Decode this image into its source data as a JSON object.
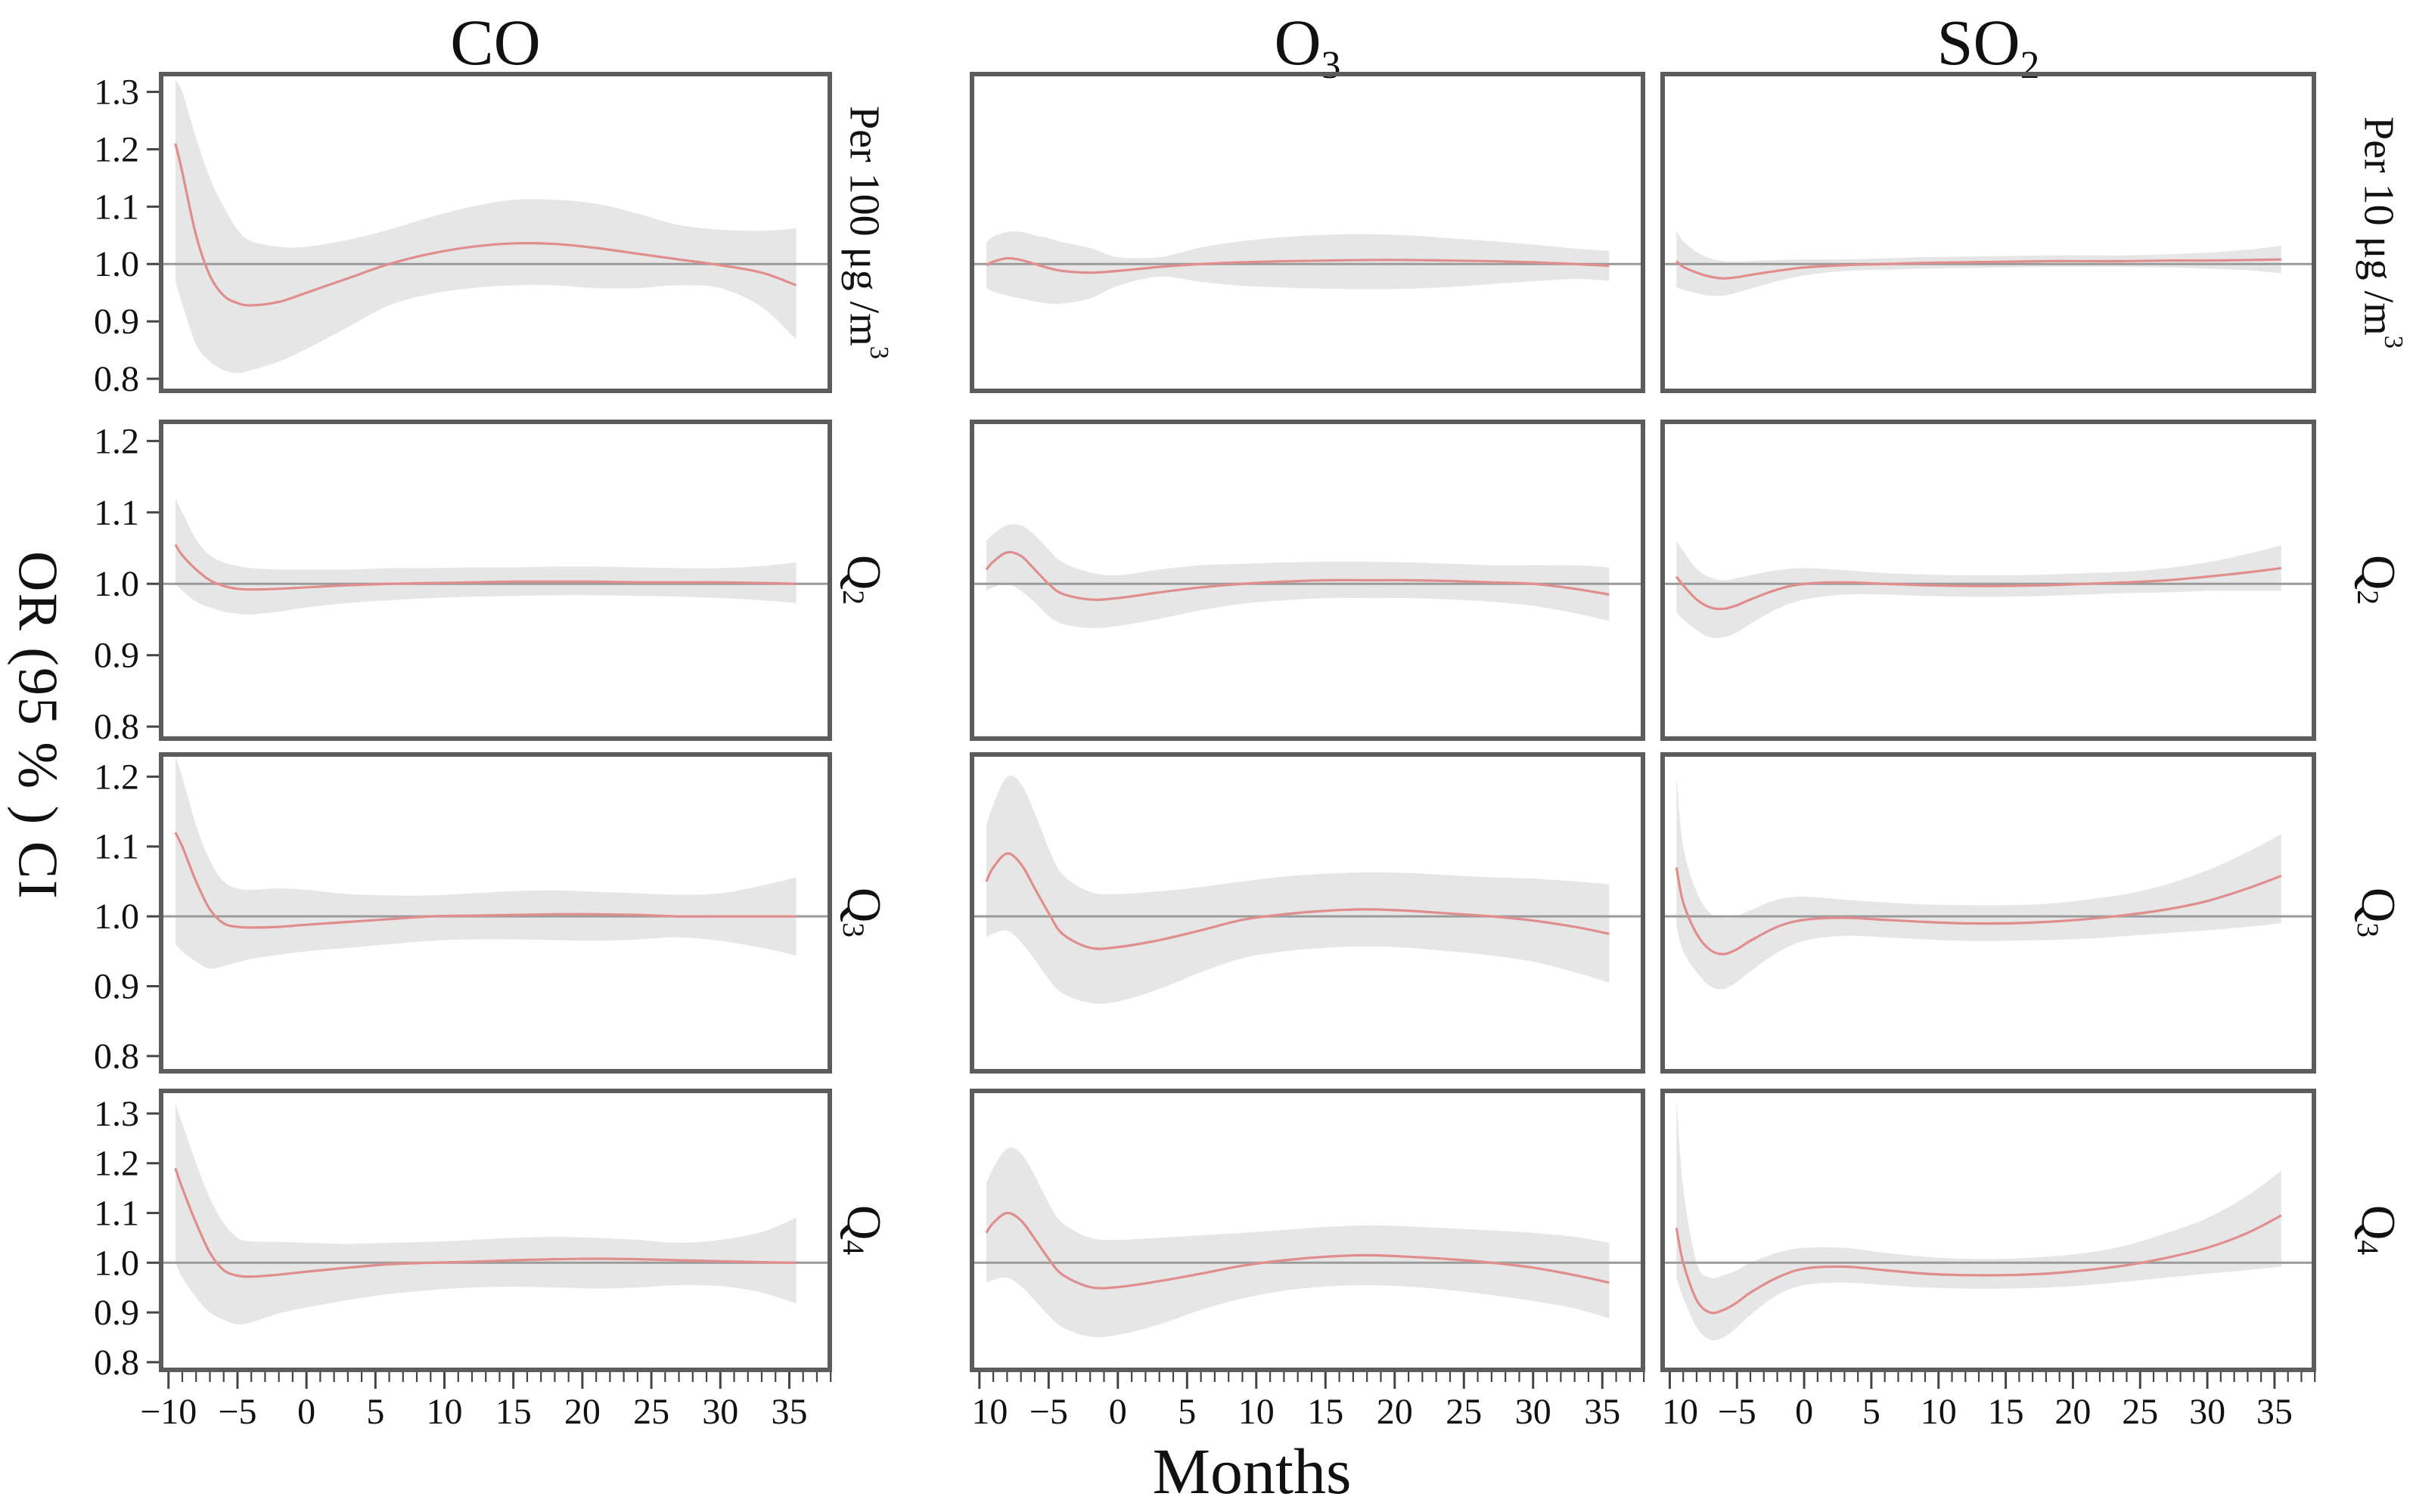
{
  "figure": {
    "columns": [
      {
        "key": "CO",
        "title": "CO",
        "title_sub": ""
      },
      {
        "key": "O3",
        "title": "O",
        "title_sub": "3"
      },
      {
        "key": "SO2",
        "title": "SO",
        "title_sub": "2"
      }
    ],
    "y_axis_label": "OR (95 % ) CI",
    "x_axis_label": "Months",
    "x_ticks": [
      -10,
      -5,
      0,
      5,
      10,
      15,
      20,
      25,
      30,
      35
    ],
    "x_domain": [
      -10.7,
      38.1
    ],
    "x_minor_from": -10,
    "x_minor_to": 38,
    "reference_line": 1.0,
    "colors": {
      "curve": "#e08d8d",
      "band": "#e3e3e3",
      "reference": "#9b9b9b",
      "frame": "#5c5c5c",
      "text": "#111111"
    },
    "rows": [
      {
        "key": "per-unit",
        "y_ticks": [
          1.3,
          1.2,
          1.1,
          1.0,
          0.9,
          0.8
        ],
        "y_domain": [
          0.775,
          1.335
        ],
        "left_label": {
          "text": "Per 100 μg /m",
          "sup": "3",
          "sub": ""
        },
        "right_label": {
          "text": "Per 10 μg /m",
          "sup": "3",
          "sub": ""
        }
      },
      {
        "key": "Q2",
        "y_ticks": [
          1.2,
          1.1,
          1.0,
          0.9,
          0.8
        ],
        "y_domain": [
          0.78,
          1.23
        ],
        "left_label": {
          "text": "Q",
          "sup": "",
          "sub": "2"
        },
        "right_label": {
          "text": "Q",
          "sup": "",
          "sub": "2"
        }
      },
      {
        "key": "Q3",
        "y_ticks": [
          1.2,
          1.1,
          1.0,
          0.9,
          0.8
        ],
        "y_domain": [
          0.775,
          1.235
        ],
        "left_label": {
          "text": "Q",
          "sup": "",
          "sub": "3"
        },
        "right_label": {
          "text": "Q",
          "sup": "",
          "sub": "3"
        }
      },
      {
        "key": "Q4",
        "y_ticks": [
          1.3,
          1.2,
          1.1,
          1.0,
          0.9,
          0.8
        ],
        "y_domain": [
          0.78,
          1.35
        ],
        "left_label": {
          "text": "Q",
          "sup": "",
          "sub": "4"
        },
        "right_label": {
          "text": "Q",
          "sup": "",
          "sub": "4"
        }
      }
    ]
  },
  "chart_data": [
    {
      "type": "line",
      "column": "CO",
      "row": "per-unit",
      "exposure_label": "Per 100 μg/m³",
      "x": [
        -9.5,
        -9,
        -8,
        -7,
        -6,
        -5,
        -4,
        -2,
        0,
        3,
        6,
        9,
        12,
        15,
        18,
        21,
        24,
        27,
        30,
        33,
        35.5
      ],
      "or": [
        1.21,
        1.16,
        1.05,
        0.98,
        0.945,
        0.932,
        0.928,
        0.934,
        0.95,
        0.975,
        1.0,
        1.018,
        1.03,
        1.036,
        1.035,
        1.028,
        1.018,
        1.008,
        0.998,
        0.985,
        0.963
      ],
      "ci_lower": [
        0.97,
        0.93,
        0.86,
        0.83,
        0.815,
        0.81,
        0.815,
        0.83,
        0.852,
        0.89,
        0.928,
        0.948,
        0.958,
        0.963,
        0.963,
        0.958,
        0.958,
        0.963,
        0.958,
        0.925,
        0.868
      ],
      "ci_upper": [
        1.32,
        1.3,
        1.22,
        1.15,
        1.1,
        1.06,
        1.04,
        1.03,
        1.03,
        1.042,
        1.06,
        1.082,
        1.1,
        1.112,
        1.112,
        1.105,
        1.088,
        1.068,
        1.06,
        1.058,
        1.062
      ]
    },
    {
      "type": "line",
      "column": "O3",
      "row": "per-unit",
      "exposure_label": "Per 100 μg/m³",
      "x": [
        -9.5,
        -9,
        -8,
        -7,
        -6,
        -5,
        -4,
        -2,
        0,
        3,
        6,
        9,
        12,
        15,
        18,
        21,
        24,
        27,
        30,
        33,
        35.5
      ],
      "or": [
        0.998,
        1.004,
        1.01,
        1.007,
        1.0,
        0.993,
        0.988,
        0.985,
        0.988,
        0.995,
        1.0,
        1.003,
        1.005,
        1.006,
        1.007,
        1.007,
        1.006,
        1.005,
        1.003,
        1.0,
        0.997
      ],
      "ci_lower": [
        0.958,
        0.952,
        0.945,
        0.94,
        0.935,
        0.931,
        0.931,
        0.94,
        0.962,
        0.978,
        0.969,
        0.962,
        0.959,
        0.957,
        0.956,
        0.957,
        0.96,
        0.965,
        0.97,
        0.974,
        0.971
      ],
      "ci_upper": [
        1.038,
        1.048,
        1.056,
        1.056,
        1.05,
        1.045,
        1.038,
        1.028,
        1.012,
        1.012,
        1.029,
        1.04,
        1.047,
        1.051,
        1.052,
        1.05,
        1.045,
        1.04,
        1.034,
        1.027,
        1.023
      ]
    },
    {
      "type": "line",
      "column": "SO2",
      "row": "per-unit",
      "exposure_label": "Per 10 μg/m³",
      "x": [
        -9.5,
        -9,
        -8,
        -7,
        -6,
        -5,
        -4,
        -2,
        0,
        3,
        6,
        9,
        12,
        15,
        18,
        21,
        24,
        27,
        30,
        33,
        35.5
      ],
      "or": [
        1.005,
        0.995,
        0.985,
        0.978,
        0.975,
        0.977,
        0.981,
        0.988,
        0.994,
        0.998,
        1.0,
        1.002,
        1.003,
        1.004,
        1.005,
        1.005,
        1.005,
        1.006,
        1.006,
        1.007,
        1.008
      ],
      "ci_lower": [
        0.96,
        0.955,
        0.949,
        0.945,
        0.945,
        0.95,
        0.957,
        0.97,
        0.98,
        0.988,
        0.99,
        0.992,
        0.993,
        0.994,
        0.995,
        0.995,
        0.995,
        0.994,
        0.992,
        0.989,
        0.984
      ],
      "ci_upper": [
        1.058,
        1.04,
        1.021,
        1.01,
        1.005,
        1.004,
        1.005,
        1.007,
        1.008,
        1.008,
        1.01,
        1.012,
        1.013,
        1.014,
        1.015,
        1.015,
        1.015,
        1.017,
        1.02,
        1.025,
        1.032
      ]
    },
    {
      "type": "line",
      "column": "CO",
      "row": "Q2",
      "exposure_label": "Q2",
      "x": [
        -9.5,
        -9,
        -8,
        -7,
        -6,
        -5,
        -4,
        -2,
        0,
        3,
        6,
        9,
        12,
        15,
        18,
        21,
        24,
        27,
        30,
        33,
        35.5
      ],
      "or": [
        1.055,
        1.04,
        1.02,
        1.005,
        0.997,
        0.993,
        0.992,
        0.993,
        0.995,
        0.998,
        1.0,
        1.001,
        1.002,
        1.003,
        1.003,
        1.003,
        1.002,
        1.002,
        1.002,
        1.001,
        1.0
      ],
      "ci_lower": [
        1.0,
        0.99,
        0.975,
        0.967,
        0.961,
        0.958,
        0.957,
        0.961,
        0.967,
        0.973,
        0.977,
        0.98,
        0.982,
        0.983,
        0.984,
        0.984,
        0.983,
        0.982,
        0.98,
        0.977,
        0.973
      ],
      "ci_upper": [
        1.12,
        1.1,
        1.062,
        1.04,
        1.03,
        1.025,
        1.022,
        1.02,
        1.02,
        1.02,
        1.022,
        1.022,
        1.023,
        1.023,
        1.024,
        1.024,
        1.023,
        1.022,
        1.022,
        1.025,
        1.03
      ]
    },
    {
      "type": "line",
      "column": "O3",
      "row": "Q2",
      "exposure_label": "Q2",
      "x": [
        -9.5,
        -9,
        -8,
        -7,
        -6,
        -5,
        -4,
        -2,
        0,
        3,
        6,
        9,
        12,
        15,
        18,
        21,
        24,
        27,
        30,
        33,
        35.5
      ],
      "or": [
        1.02,
        1.031,
        1.044,
        1.039,
        1.02,
        1.0,
        0.986,
        0.978,
        0.98,
        0.988,
        0.995,
        1.0,
        1.003,
        1.005,
        1.005,
        1.005,
        1.004,
        1.002,
        1.0,
        0.993,
        0.985
      ],
      "ci_lower": [
        0.99,
        0.995,
        1.0,
        0.99,
        0.974,
        0.955,
        0.944,
        0.938,
        0.941,
        0.951,
        0.963,
        0.972,
        0.977,
        0.98,
        0.98,
        0.98,
        0.978,
        0.975,
        0.969,
        0.959,
        0.948
      ],
      "ci_upper": [
        1.06,
        1.07,
        1.082,
        1.082,
        1.068,
        1.048,
        1.03,
        1.016,
        1.012,
        1.02,
        1.026,
        1.028,
        1.03,
        1.031,
        1.031,
        1.03,
        1.028,
        1.026,
        1.026,
        1.026,
        1.023
      ]
    },
    {
      "type": "line",
      "column": "SO2",
      "row": "Q2",
      "exposure_label": "Q2",
      "x": [
        -9.5,
        -9,
        -8,
        -7,
        -6,
        -5,
        -4,
        -2,
        0,
        3,
        6,
        9,
        12,
        15,
        18,
        21,
        24,
        27,
        30,
        33,
        35.5
      ],
      "or": [
        1.01,
        0.998,
        0.978,
        0.967,
        0.965,
        0.97,
        0.978,
        0.992,
        1.0,
        1.002,
        1.0,
        0.998,
        0.997,
        0.997,
        0.998,
        1.0,
        1.002,
        1.005,
        1.01,
        1.016,
        1.022
      ],
      "ci_lower": [
        0.96,
        0.95,
        0.935,
        0.925,
        0.925,
        0.932,
        0.944,
        0.965,
        0.978,
        0.985,
        0.985,
        0.983,
        0.982,
        0.982,
        0.983,
        0.985,
        0.987,
        0.988,
        0.99,
        0.99,
        0.99
      ],
      "ci_upper": [
        1.06,
        1.046,
        1.021,
        1.009,
        1.005,
        1.008,
        1.012,
        1.019,
        1.022,
        1.019,
        1.015,
        1.013,
        1.012,
        1.012,
        1.013,
        1.015,
        1.017,
        1.022,
        1.03,
        1.042,
        1.054
      ]
    },
    {
      "type": "line",
      "column": "CO",
      "row": "Q3",
      "exposure_label": "Q3",
      "x": [
        -9.5,
        -9,
        -8,
        -7,
        -6,
        -5,
        -4,
        -2,
        0,
        3,
        6,
        9,
        12,
        15,
        18,
        21,
        24,
        27,
        30,
        33,
        35.5
      ],
      "or": [
        1.12,
        1.1,
        1.05,
        1.01,
        0.99,
        0.985,
        0.984,
        0.985,
        0.988,
        0.992,
        0.996,
        1.0,
        1.001,
        1.002,
        1.003,
        1.003,
        1.002,
        1.0,
        1.0,
        1.0,
        1.0
      ],
      "ci_lower": [
        0.96,
        0.95,
        0.935,
        0.925,
        0.929,
        0.934,
        0.939,
        0.945,
        0.95,
        0.955,
        0.96,
        0.965,
        0.967,
        0.967,
        0.966,
        0.965,
        0.967,
        0.97,
        0.965,
        0.955,
        0.944
      ],
      "ci_upper": [
        1.23,
        1.2,
        1.13,
        1.08,
        1.05,
        1.04,
        1.038,
        1.04,
        1.038,
        1.032,
        1.03,
        1.03,
        1.033,
        1.036,
        1.037,
        1.035,
        1.033,
        1.031,
        1.033,
        1.044,
        1.056
      ]
    },
    {
      "type": "line",
      "column": "O3",
      "row": "Q3",
      "exposure_label": "Q3",
      "x": [
        -9.5,
        -9,
        -8,
        -7,
        -6,
        -5,
        -4,
        -2,
        0,
        3,
        6,
        9,
        12,
        15,
        18,
        21,
        24,
        27,
        30,
        33,
        35.5
      ],
      "or": [
        1.05,
        1.07,
        1.09,
        1.075,
        1.04,
        1.005,
        0.975,
        0.955,
        0.956,
        0.966,
        0.98,
        0.995,
        1.003,
        1.008,
        1.01,
        1.008,
        1.004,
        1.0,
        0.994,
        0.985,
        0.975
      ],
      "ci_lower": [
        0.97,
        0.975,
        0.98,
        0.963,
        0.938,
        0.91,
        0.89,
        0.876,
        0.878,
        0.896,
        0.92,
        0.94,
        0.95,
        0.955,
        0.957,
        0.955,
        0.95,
        0.944,
        0.935,
        0.92,
        0.905
      ],
      "ci_upper": [
        1.13,
        1.16,
        1.2,
        1.19,
        1.148,
        1.098,
        1.06,
        1.035,
        1.032,
        1.036,
        1.042,
        1.05,
        1.057,
        1.061,
        1.063,
        1.062,
        1.059,
        1.056,
        1.054,
        1.05,
        1.046
      ]
    },
    {
      "type": "line",
      "column": "SO2",
      "row": "Q3",
      "exposure_label": "Q3",
      "x": [
        -9.5,
        -9,
        -8,
        -7,
        -6,
        -5,
        -4,
        -2,
        0,
        3,
        6,
        9,
        12,
        15,
        18,
        21,
        24,
        27,
        30,
        33,
        35.5
      ],
      "or": [
        1.07,
        1.02,
        0.975,
        0.952,
        0.946,
        0.953,
        0.965,
        0.985,
        0.995,
        0.998,
        0.995,
        0.992,
        0.99,
        0.99,
        0.992,
        0.996,
        1.002,
        1.01,
        1.022,
        1.04,
        1.058
      ],
      "ci_lower": [
        0.985,
        0.95,
        0.92,
        0.9,
        0.896,
        0.906,
        0.921,
        0.948,
        0.965,
        0.972,
        0.97,
        0.967,
        0.965,
        0.965,
        0.966,
        0.968,
        0.972,
        0.976,
        0.98,
        0.985,
        0.99
      ],
      "ci_upper": [
        1.2,
        1.1,
        1.035,
        1.005,
        0.998,
        1.0,
        1.009,
        1.024,
        1.028,
        1.024,
        1.02,
        1.017,
        1.016,
        1.016,
        1.018,
        1.024,
        1.032,
        1.046,
        1.066,
        1.092,
        1.118
      ]
    },
    {
      "type": "line",
      "column": "CO",
      "row": "Q4",
      "exposure_label": "Q4",
      "x": [
        -9.5,
        -9,
        -8,
        -7,
        -6,
        -5,
        -4,
        -2,
        0,
        3,
        6,
        9,
        12,
        15,
        18,
        21,
        24,
        27,
        30,
        33,
        35.5
      ],
      "or": [
        1.19,
        1.15,
        1.08,
        1.02,
        0.985,
        0.974,
        0.972,
        0.976,
        0.982,
        0.99,
        0.997,
        1.0,
        1.002,
        1.005,
        1.007,
        1.008,
        1.007,
        1.005,
        1.003,
        1.001,
        1.0
      ],
      "ci_lower": [
        1.0,
        0.97,
        0.93,
        0.9,
        0.885,
        0.876,
        0.88,
        0.898,
        0.91,
        0.925,
        0.937,
        0.945,
        0.95,
        0.952,
        0.95,
        0.948,
        0.95,
        0.955,
        0.953,
        0.94,
        0.918
      ],
      "ci_upper": [
        1.32,
        1.28,
        1.2,
        1.13,
        1.08,
        1.05,
        1.043,
        1.042,
        1.04,
        1.038,
        1.04,
        1.042,
        1.046,
        1.05,
        1.052,
        1.05,
        1.046,
        1.04,
        1.046,
        1.062,
        1.09
      ]
    },
    {
      "type": "line",
      "column": "O3",
      "row": "Q4",
      "exposure_label": "Q4",
      "x": [
        -9.5,
        -9,
        -8,
        -7,
        -6,
        -5,
        -4,
        -2,
        0,
        3,
        6,
        9,
        12,
        15,
        18,
        21,
        24,
        27,
        30,
        33,
        35.5
      ],
      "or": [
        1.06,
        1.08,
        1.1,
        1.085,
        1.048,
        1.008,
        0.976,
        0.951,
        0.951,
        0.963,
        0.978,
        0.994,
        1.005,
        1.012,
        1.015,
        1.012,
        1.007,
        1.0,
        0.99,
        0.975,
        0.96
      ],
      "ci_lower": [
        0.96,
        0.965,
        0.97,
        0.953,
        0.924,
        0.894,
        0.87,
        0.851,
        0.855,
        0.876,
        0.905,
        0.928,
        0.944,
        0.952,
        0.955,
        0.952,
        0.945,
        0.935,
        0.923,
        0.908,
        0.888
      ],
      "ci_upper": [
        1.16,
        1.19,
        1.23,
        1.22,
        1.175,
        1.12,
        1.08,
        1.05,
        1.046,
        1.05,
        1.055,
        1.06,
        1.066,
        1.072,
        1.075,
        1.073,
        1.069,
        1.065,
        1.06,
        1.052,
        1.04
      ]
    },
    {
      "type": "line",
      "column": "SO2",
      "row": "Q4",
      "exposure_label": "Q4",
      "x": [
        -9.5,
        -9,
        -8,
        -7,
        -6,
        -5,
        -4,
        -2,
        0,
        3,
        6,
        9,
        12,
        15,
        18,
        21,
        24,
        27,
        30,
        33,
        35.5
      ],
      "or": [
        1.07,
        1.0,
        0.925,
        0.9,
        0.905,
        0.92,
        0.94,
        0.97,
        0.988,
        0.992,
        0.985,
        0.978,
        0.975,
        0.975,
        0.978,
        0.985,
        0.995,
        1.01,
        1.03,
        1.06,
        1.095
      ],
      "ci_lower": [
        0.97,
        0.93,
        0.87,
        0.845,
        0.85,
        0.87,
        0.895,
        0.935,
        0.955,
        0.96,
        0.955,
        0.95,
        0.948,
        0.948,
        0.95,
        0.955,
        0.962,
        0.97,
        0.978,
        0.985,
        0.992
      ],
      "ci_upper": [
        1.33,
        1.15,
        1.0,
        0.97,
        0.975,
        0.985,
        1.0,
        1.02,
        1.03,
        1.03,
        1.02,
        1.012,
        1.008,
        1.008,
        1.012,
        1.02,
        1.035,
        1.06,
        1.09,
        1.135,
        1.185
      ]
    }
  ]
}
